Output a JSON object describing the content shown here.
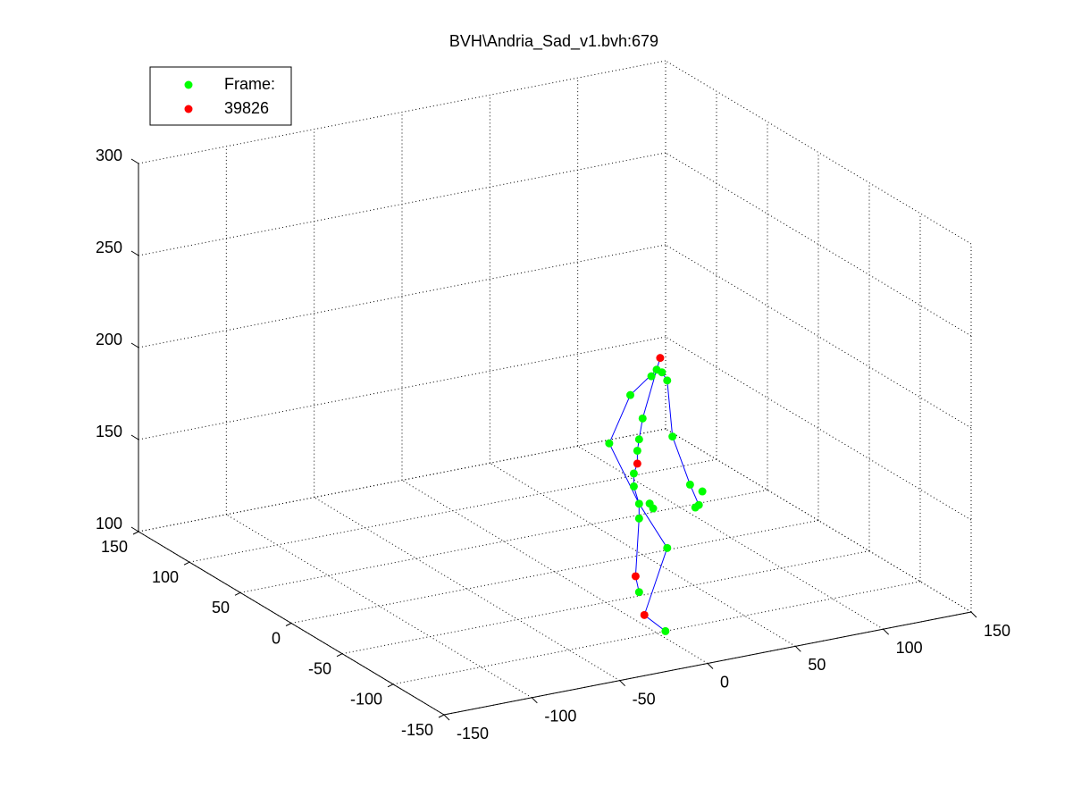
{
  "chart_data": {
    "type": "scatter3d",
    "title": "BVH\\Andria_Sad_v1.bvh:679",
    "xlim": [
      -150,
      150
    ],
    "xticks": [
      -150,
      -100,
      -50,
      0,
      50,
      100,
      150
    ],
    "ylim": [
      -150,
      150
    ],
    "yticks": [
      -150,
      -100,
      -50,
      0,
      50,
      100,
      150
    ],
    "zlim": [
      100,
      300
    ],
    "zticks": [
      100,
      150,
      200,
      250,
      300
    ],
    "grid": true,
    "legend": "top-left",
    "series": [
      {
        "name": "Frame:",
        "color": "#00ff00",
        "x": [
          0,
          -3,
          3,
          -15,
          6,
          -8,
          -27,
          9,
          -10,
          -11,
          -13,
          -13,
          -10,
          -4,
          -2,
          -10,
          6,
          -10,
          5,
          19,
          24,
          26,
          22
        ],
        "y": [
          -100,
          -100,
          -100,
          -100,
          -100,
          -100,
          -100,
          -100,
          -100,
          -100,
          -100,
          -100,
          -100,
          -100,
          -100,
          -100,
          -100,
          -100,
          -100,
          -100,
          -100,
          -100,
          -100
        ],
        "z": [
          243,
          240,
          241,
          232,
          236,
          218,
          208,
          205,
          207,
          201,
          189,
          182,
          172,
          171,
          168,
          164,
          145,
          124,
          100,
          177,
          165,
          172,
          164
        ]
      },
      {
        "name": "39826",
        "color": "#ff0000",
        "x": [
          2,
          -11,
          -12,
          -7
        ],
        "y": [
          -100,
          -100,
          -100,
          -100
        ],
        "z": [
          249,
          194,
          133,
          111
        ]
      }
    ],
    "bones": {
      "color": "#0000ff",
      "x": [
        2,
        0,
        -8,
        -10,
        -11,
        -11,
        -13,
        -13,
        -10,
        null,
        0,
        -15,
        -27,
        -10,
        null,
        0,
        3,
        6,
        9,
        19,
        24,
        null,
        -10,
        -10,
        -12,
        -10,
        null,
        -10,
        6,
        -7,
        5
      ],
      "y": [
        -100,
        -100,
        -100,
        -100,
        -100,
        -100,
        -100,
        -100,
        -100,
        null,
        -100,
        -100,
        -100,
        -100,
        null,
        -100,
        -100,
        -100,
        -100,
        -100,
        -100,
        null,
        -100,
        -100,
        -100,
        -100,
        null,
        -100,
        -100,
        -100,
        -100
      ],
      "z": [
        249,
        243,
        218,
        207,
        201,
        194,
        189,
        182,
        172,
        null,
        243,
        232,
        208,
        172,
        null,
        243,
        241,
        236,
        205,
        177,
        165,
        null,
        172,
        164,
        133,
        124,
        null,
        172,
        145,
        111,
        100
      ]
    }
  }
}
